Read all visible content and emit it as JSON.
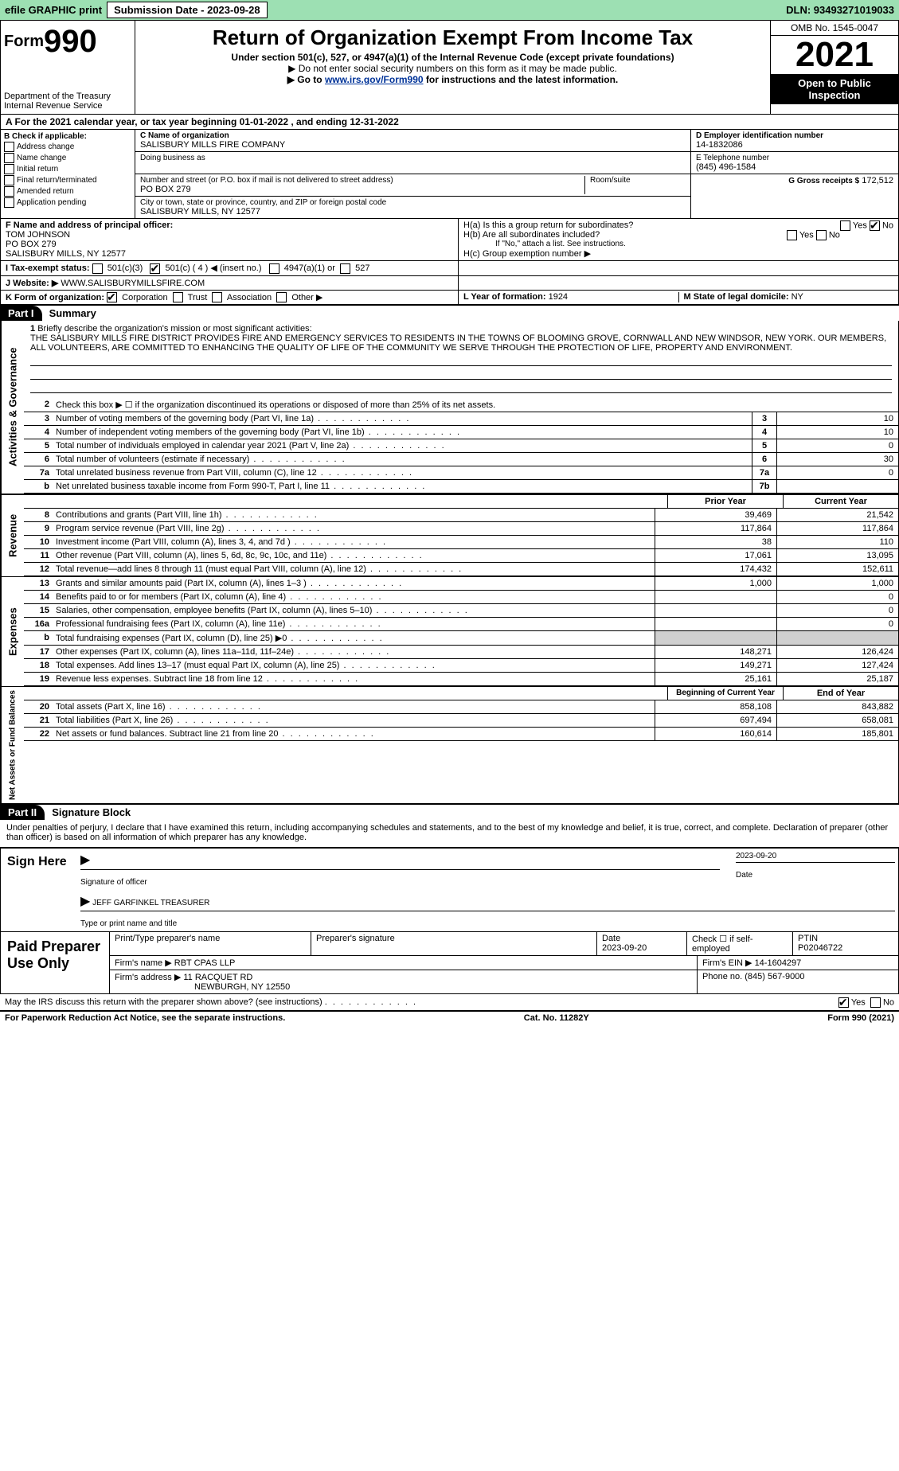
{
  "topbar": {
    "efile": "efile GRAPHIC print",
    "submission_label": "Submission Date - 2023-09-28",
    "dln": "DLN: 93493271019033"
  },
  "header": {
    "form_prefix": "Form",
    "form_num": "990",
    "dept": "Department of the Treasury",
    "irs": "Internal Revenue Service",
    "title": "Return of Organization Exempt From Income Tax",
    "sub": "Under section 501(c), 527, or 4947(a)(1) of the Internal Revenue Code (except private foundations)",
    "note1": "▶ Do not enter social security numbers on this form as it may be made public.",
    "note2_a": "▶ Go to ",
    "note2_link": "www.irs.gov/Form990",
    "note2_b": " for instructions and the latest information.",
    "omb": "OMB No. 1545-0047",
    "year": "2021",
    "open": "Open to Public Inspection"
  },
  "row_a": "A For the 2021 calendar year, or tax year beginning 01-01-2022    , and ending 12-31-2022",
  "box_b": {
    "label": "B Check if applicable:",
    "opts": [
      "Address change",
      "Name change",
      "Initial return",
      "Final return/terminated",
      "Amended return",
      "Application pending"
    ]
  },
  "box_c": {
    "label_name": "C Name of organization",
    "name": "SALISBURY MILLS FIRE COMPANY",
    "dba_label": "Doing business as",
    "addr_label": "Number and street (or P.O. box if mail is not delivered to street address)",
    "room_label": "Room/suite",
    "addr": "PO BOX 279",
    "city_label": "City or town, state or province, country, and ZIP or foreign postal code",
    "city": "SALISBURY MILLS, NY  12577"
  },
  "box_d": {
    "label": "D Employer identification number",
    "val": "14-1832086"
  },
  "box_e": {
    "label": "E Telephone number",
    "val": "(845) 496-1584"
  },
  "box_g": {
    "label": "G Gross receipts $",
    "val": "172,512"
  },
  "box_f": {
    "label": "F  Name and address of principal officer:",
    "name": "TOM JOHNSON",
    "addr1": "PO BOX 279",
    "addr2": "SALISBURY MILLS, NY  12577"
  },
  "box_h": {
    "a": "H(a)  Is this a group return for subordinates?",
    "b": "H(b)  Are all subordinates included?",
    "note": "If \"No,\" attach a list. See instructions.",
    "c": "H(c)  Group exemption number ▶",
    "yes": "Yes",
    "no": "No"
  },
  "box_i": {
    "label": "I  Tax-exempt status:",
    "a": "501(c)(3)",
    "b": "501(c) ( 4 ) ◀ (insert no.)",
    "c": "4947(a)(1) or",
    "d": "527"
  },
  "box_j": {
    "label": "J  Website: ▶",
    "val": "WWW.SALISBURYMILLSFIRE.COM"
  },
  "box_k": {
    "label": "K Form of organization:",
    "opts": [
      "Corporation",
      "Trust",
      "Association",
      "Other ▶"
    ]
  },
  "box_l": {
    "label": "L Year of formation:",
    "val": "1924"
  },
  "box_m": {
    "label": "M State of legal domicile:",
    "val": "NY"
  },
  "part1": {
    "tag": "Part I",
    "title": "Summary"
  },
  "mission": {
    "num": "1",
    "label": "Briefly describe the organization's mission or most significant activities:",
    "text": "THE SALISBURY MILLS FIRE DISTRICT PROVIDES FIRE AND EMERGENCY SERVICES TO RESIDENTS IN THE TOWNS OF BLOOMING GROVE, CORNWALL AND NEW WINDSOR, NEW YORK. OUR MEMBERS, ALL VOLUNTEERS, ARE COMMITTED TO ENHANCING THE QUALITY OF LIFE OF THE COMMUNITY WE SERVE THROUGH THE PROTECTION OF LIFE, PROPERTY AND ENVIRONMENT."
  },
  "line2": "Check this box ▶ ☐  if the organization discontinued its operations or disposed of more than 25% of its net assets.",
  "gov_lines": [
    {
      "n": "3",
      "d": "Number of voting members of the governing body (Part VI, line 1a)",
      "b": "3",
      "v": "10"
    },
    {
      "n": "4",
      "d": "Number of independent voting members of the governing body (Part VI, line 1b)",
      "b": "4",
      "v": "10"
    },
    {
      "n": "5",
      "d": "Total number of individuals employed in calendar year 2021 (Part V, line 2a)",
      "b": "5",
      "v": "0"
    },
    {
      "n": "6",
      "d": "Total number of volunteers (estimate if necessary)",
      "b": "6",
      "v": "30"
    },
    {
      "n": "7a",
      "d": "Total unrelated business revenue from Part VIII, column (C), line 12",
      "b": "7a",
      "v": "0"
    },
    {
      "n": "b",
      "d": "Net unrelated business taxable income from Form 990-T, Part I, line 11",
      "b": "7b",
      "v": ""
    }
  ],
  "col_prior": "Prior Year",
  "col_current": "Current Year",
  "rev_lines": [
    {
      "n": "8",
      "d": "Contributions and grants (Part VIII, line 1h)",
      "p": "39,469",
      "c": "21,542"
    },
    {
      "n": "9",
      "d": "Program service revenue (Part VIII, line 2g)",
      "p": "117,864",
      "c": "117,864"
    },
    {
      "n": "10",
      "d": "Investment income (Part VIII, column (A), lines 3, 4, and 7d )",
      "p": "38",
      "c": "110"
    },
    {
      "n": "11",
      "d": "Other revenue (Part VIII, column (A), lines 5, 6d, 8c, 9c, 10c, and 11e)",
      "p": "17,061",
      "c": "13,095"
    },
    {
      "n": "12",
      "d": "Total revenue—add lines 8 through 11 (must equal Part VIII, column (A), line 12)",
      "p": "174,432",
      "c": "152,611"
    }
  ],
  "exp_lines": [
    {
      "n": "13",
      "d": "Grants and similar amounts paid (Part IX, column (A), lines 1–3 )",
      "p": "1,000",
      "c": "1,000"
    },
    {
      "n": "14",
      "d": "Benefits paid to or for members (Part IX, column (A), line 4)",
      "p": "",
      "c": "0"
    },
    {
      "n": "15",
      "d": "Salaries, other compensation, employee benefits (Part IX, column (A), lines 5–10)",
      "p": "",
      "c": "0"
    },
    {
      "n": "16a",
      "d": "Professional fundraising fees (Part IX, column (A), line 11e)",
      "p": "",
      "c": "0"
    },
    {
      "n": "b",
      "d": "Total fundraising expenses (Part IX, column (D), line 25) ▶0",
      "p": "shade",
      "c": "shade"
    },
    {
      "n": "17",
      "d": "Other expenses (Part IX, column (A), lines 11a–11d, 11f–24e)",
      "p": "148,271",
      "c": "126,424"
    },
    {
      "n": "18",
      "d": "Total expenses. Add lines 13–17 (must equal Part IX, column (A), line 25)",
      "p": "149,271",
      "c": "127,424"
    },
    {
      "n": "19",
      "d": "Revenue less expenses. Subtract line 18 from line 12",
      "p": "25,161",
      "c": "25,187"
    }
  ],
  "col_begin": "Beginning of Current Year",
  "col_end": "End of Year",
  "net_lines": [
    {
      "n": "20",
      "d": "Total assets (Part X, line 16)",
      "p": "858,108",
      "c": "843,882"
    },
    {
      "n": "21",
      "d": "Total liabilities (Part X, line 26)",
      "p": "697,494",
      "c": "658,081"
    },
    {
      "n": "22",
      "d": "Net assets or fund balances. Subtract line 21 from line 20",
      "p": "160,614",
      "c": "185,801"
    }
  ],
  "side_labels": {
    "gov": "Activities & Governance",
    "rev": "Revenue",
    "exp": "Expenses",
    "net": "Net Assets or Fund Balances"
  },
  "part2": {
    "tag": "Part II",
    "title": "Signature Block"
  },
  "penalty": "Under penalties of perjury, I declare that I have examined this return, including accompanying schedules and statements, and to the best of my knowledge and belief, it is true, correct, and complete. Declaration of preparer (other than officer) is based on all information of which preparer has any knowledge.",
  "sign": {
    "here": "Sign Here",
    "sig_officer": "Signature of officer",
    "date": "Date",
    "date_val": "2023-09-20",
    "name": "JEFF GARFINKEL TREASURER",
    "type_label": "Type or print name and title"
  },
  "preparer": {
    "label": "Paid Preparer Use Only",
    "h1": "Print/Type preparer's name",
    "h2": "Preparer's signature",
    "h3": "Date",
    "h3v": "2023-09-20",
    "h4": "Check ☐ if self-employed",
    "h5": "PTIN",
    "h5v": "P02046722",
    "firm_label": "Firm's name    ▶",
    "firm": "RBT CPAS LLP",
    "ein_label": "Firm's EIN ▶",
    "ein": "14-1604297",
    "addr_label": "Firm's address ▶",
    "addr1": "11 RACQUET RD",
    "addr2": "NEWBURGH, NY 12550",
    "phone_label": "Phone no.",
    "phone": "(845) 567-9000"
  },
  "discuss": "May the IRS discuss this return with the preparer shown above? (see instructions)",
  "discuss_yes": "Yes",
  "discuss_no": "No",
  "footer": {
    "left": "For Paperwork Reduction Act Notice, see the separate instructions.",
    "mid": "Cat. No. 11282Y",
    "right": "Form 990 (2021)"
  }
}
